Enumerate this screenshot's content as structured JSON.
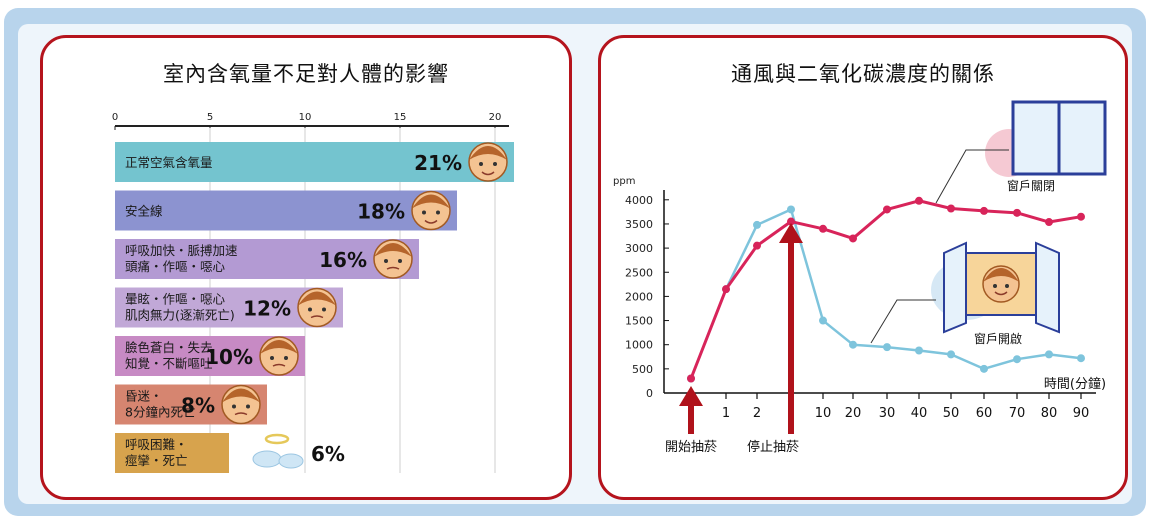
{
  "left_title": "室內含氧量不足對人體的影響",
  "right_title": "通風與二氧化碳濃度的關係",
  "chart_data": [
    {
      "type": "bar",
      "orientation": "horizontal",
      "title": "室內含氧量不足對人體的影響",
      "xlim": [
        0,
        20
      ],
      "xticks": [
        "0",
        "5",
        "10",
        "15",
        "20"
      ],
      "grid": true,
      "categories": [
        [
          "正常空氣含氧量"
        ],
        [
          "安全線"
        ],
        [
          "呼吸加快・脈搏加速",
          "頭痛・作嘔・噁心"
        ],
        [
          "暈眩・作嘔・噁心",
          "肌肉無力(逐漸死亡)"
        ],
        [
          "臉色蒼白・失去",
          "知覺・不斷嘔吐"
        ],
        [
          "昏迷・",
          "8分鐘內死亡"
        ],
        [
          "呼吸困難・",
          "痙攣・死亡"
        ]
      ],
      "values": [
        21,
        18,
        16,
        12,
        10,
        8,
        6
      ],
      "value_labels": [
        "21%",
        "18%",
        "16%",
        "12%",
        "10%",
        "8%",
        "6%"
      ],
      "colors": [
        "#74c4cf",
        "#8c93d0",
        "#b39ad3",
        "#c1a8d7",
        "#c78ac4",
        "#d68570",
        "#d7a34d"
      ]
    },
    {
      "type": "line",
      "title": "通風與二氧化碳濃度的關係",
      "y_unit": "ppm",
      "xlabel": "時間(分鐘)",
      "ylim": [
        0,
        4000
      ],
      "yticks": [
        "0",
        "500",
        "1000",
        "1500",
        "2000",
        "2500",
        "3000",
        "3500",
        "4000"
      ],
      "xticks": [
        "1",
        "2",
        "10",
        "20",
        "30",
        "40",
        "50",
        "60",
        "70",
        "80",
        "90"
      ],
      "series": [
        {
          "name": "窗戶關閉",
          "color": "#d8245a",
          "points": [
            [
              0,
              300
            ],
            [
              1,
              2150
            ],
            [
              2,
              3050
            ],
            [
              3,
              3550
            ],
            [
              10,
              3400
            ],
            [
              20,
              3200
            ],
            [
              30,
              3800
            ],
            [
              40,
              3980
            ],
            [
              50,
              3820
            ],
            [
              60,
              3770
            ],
            [
              70,
              3730
            ],
            [
              80,
              3540
            ],
            [
              90,
              3650
            ]
          ]
        },
        {
          "name": "窗戶開啟",
          "color": "#7ec4dc",
          "points": [
            [
              0,
              300
            ],
            [
              1,
              2150
            ],
            [
              2,
              3480
            ],
            [
              3,
              3800
            ],
            [
              10,
              1500
            ],
            [
              20,
              1000
            ],
            [
              30,
              950
            ],
            [
              40,
              880
            ],
            [
              50,
              800
            ],
            [
              60,
              500
            ],
            [
              70,
              700
            ],
            [
              80,
              800
            ],
            [
              90,
              720
            ]
          ]
        }
      ],
      "annotations": [
        "開始抽菸",
        "停止抽菸"
      ]
    }
  ]
}
